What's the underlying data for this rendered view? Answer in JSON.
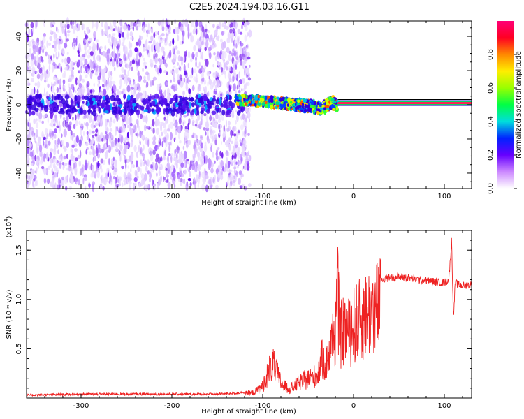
{
  "title": "C2E5.2024.194.03.16.G11",
  "colors": {
    "snr_line": "#ee2222",
    "spectrogram_noise": "#8a3cf0",
    "spectrogram_low": "#5500ee",
    "colorbar": [
      "#ffffff",
      "#cc88ff",
      "#6600ff",
      "#0022ff",
      "#00dddd",
      "#00ff44",
      "#99ff00",
      "#ffee00",
      "#ff8800",
      "#ff0022",
      "#ff0077"
    ]
  },
  "chart_data": [
    {
      "type": "heatmap",
      "xlabel": "Height of straight line (km)",
      "ylabel": "Frequency (Hz)",
      "xlim": [
        -360,
        130
      ],
      "ylim": [
        -49,
        49
      ],
      "xticks": [
        -300,
        -200,
        -100,
        0,
        100
      ],
      "yticks": [
        -40,
        -20,
        0,
        20,
        40
      ],
      "grid": false,
      "colorbar": {
        "label": "Normalized spectral amplitude",
        "range": [
          0,
          1
        ],
        "ticks": [
          "0.0",
          "0.2",
          "0.4",
          "0.6",
          "0.8"
        ]
      },
      "features": {
        "broadband_noise_x": [
          -360,
          -120
        ],
        "signal_trace": [
          [
            -130,
            3
          ],
          [
            -100,
            2
          ],
          [
            -80,
            1
          ],
          [
            -60,
            0
          ],
          [
            -45,
            -1
          ],
          [
            -35,
            -2
          ],
          [
            -25,
            1
          ],
          [
            -15,
            0
          ],
          [
            0,
            0
          ],
          [
            50,
            1
          ],
          [
            100,
            1
          ],
          [
            130,
            1
          ]
        ]
      }
    },
    {
      "type": "line",
      "xlabel": "Height of straight line (km)",
      "ylabel": "SNR (10 * v/v)",
      "y_multiplier": "(x10^4)",
      "xlim": [
        -360,
        130
      ],
      "ylim": [
        0,
        1.7
      ],
      "xticks": [
        -300,
        -200,
        -100,
        0,
        100
      ],
      "yticks": [
        0.5,
        1.0,
        1.5
      ],
      "grid": false,
      "series": [
        {
          "x": [
            -360,
            -300,
            -250,
            -200,
            -150,
            -130,
            -110,
            -100,
            -95,
            -90,
            -85,
            -80,
            -75,
            -70,
            -60,
            -50,
            -40,
            -35,
            -30,
            -25,
            -20,
            -18,
            -15,
            -10,
            -5,
            0,
            5,
            10,
            20,
            30,
            40,
            50,
            60,
            70,
            80,
            90,
            100,
            105,
            108,
            110,
            112,
            115,
            120,
            130
          ],
          "y": [
            0.03,
            0.04,
            0.04,
            0.04,
            0.04,
            0.05,
            0.07,
            0.15,
            0.3,
            0.45,
            0.35,
            0.2,
            0.15,
            0.12,
            0.2,
            0.25,
            0.3,
            0.5,
            0.45,
            0.65,
            0.9,
            1.45,
            0.8,
            0.9,
            0.85,
            0.95,
            1.0,
            1.05,
            1.15,
            1.2,
            1.22,
            1.23,
            1.22,
            1.2,
            1.19,
            1.18,
            1.17,
            1.2,
            1.6,
            0.8,
            1.18,
            1.15,
            1.14,
            1.15
          ]
        }
      ]
    }
  ]
}
